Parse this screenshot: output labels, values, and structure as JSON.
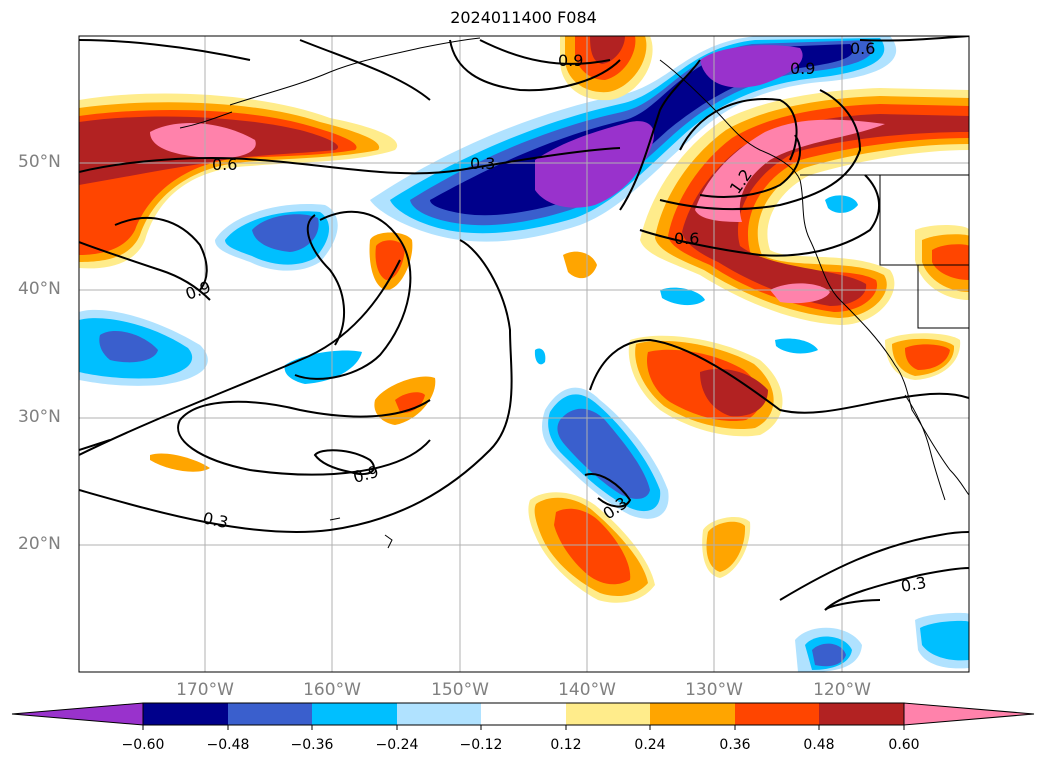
{
  "title": "2024011400 F084",
  "lat_labels": [
    "50°N",
    "40°N",
    "30°N",
    "20°N"
  ],
  "lon_labels": [
    "170°W",
    "160°W",
    "150°W",
    "140°W",
    "130°W",
    "120°W"
  ],
  "contour_labels": [
    "0.3",
    "0.6",
    "0.9",
    "0.9",
    "0.9",
    "0.3",
    "0.6",
    "0.9",
    "0.3",
    "0.6",
    "1.2",
    "0.3",
    "0.9"
  ],
  "colorbar": {
    "ticks": [
      "−0.60",
      "−0.48",
      "−0.36",
      "−0.24",
      "−0.12",
      "0.12",
      "0.24",
      "0.36",
      "0.48",
      "0.60"
    ],
    "colors": [
      "#9932cc",
      "#00008b",
      "#3a5fcd",
      "#00bfff",
      "#b0e2ff",
      "#ffffff",
      "#ffec8b",
      "#ffa500",
      "#ff4500",
      "#b22222",
      "#ff82ab",
      "#ff82ab"
    ]
  },
  "palette": {
    "purple": "#9932cc",
    "navy": "#00008b",
    "royalblue": "#3a5fcd",
    "deepsky": "#00bfff",
    "lightblue": "#b0e2ff",
    "paleyellow": "#ffec8b",
    "orange": "#ffa500",
    "orangered": "#ff4500",
    "firebrick": "#b22222",
    "pink": "#ff82ab"
  }
}
